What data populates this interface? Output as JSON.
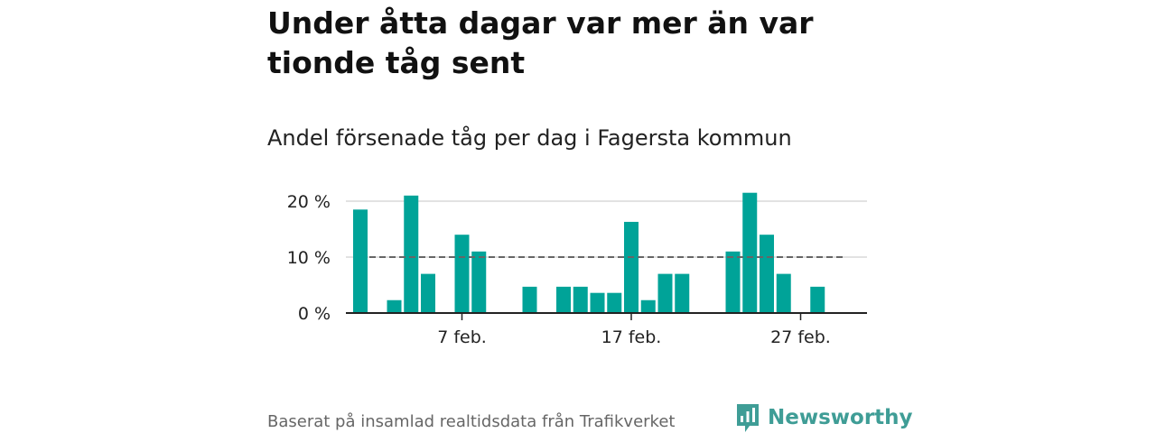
{
  "title": "Under åtta dagar var mer än var tionde tåg sent",
  "subtitle": "Andel försenade tåg per dag i Fagersta kommun",
  "source": "Baserat på insamlad realtidsdata från Trafikverket",
  "brand": "Newsworthy",
  "colors": {
    "bar": "#00a398",
    "grid": "#d9d9d9",
    "axis": "#222222",
    "reference": "#666666",
    "brand": "#3f9d96"
  },
  "chart_data": {
    "type": "bar",
    "x": [
      1,
      2,
      3,
      4,
      5,
      6,
      7,
      8,
      9,
      10,
      11,
      12,
      13,
      14,
      15,
      16,
      17,
      18,
      19,
      20,
      21,
      22,
      23,
      24,
      25,
      26,
      27,
      28
    ],
    "values": [
      18.5,
      0,
      2.3,
      21,
      7,
      0,
      14,
      11,
      0,
      0,
      4.7,
      0,
      4.7,
      4.7,
      3.6,
      3.6,
      16.3,
      2.3,
      7,
      7,
      0,
      0,
      11,
      21.5,
      14,
      7,
      0,
      4.7
    ],
    "reference_line": 10,
    "yticks": [
      {
        "value": 0,
        "label": "0 %"
      },
      {
        "value": 10,
        "label": "10 %"
      },
      {
        "value": 20,
        "label": "20 %"
      }
    ],
    "xticks": [
      {
        "value": 7,
        "label": "7 feb."
      },
      {
        "value": 17,
        "label": "17 feb."
      },
      {
        "value": 27,
        "label": "27 feb."
      }
    ],
    "xlim": [
      0.5,
      28.5
    ],
    "ylim": [
      0,
      22
    ],
    "grid": true
  }
}
